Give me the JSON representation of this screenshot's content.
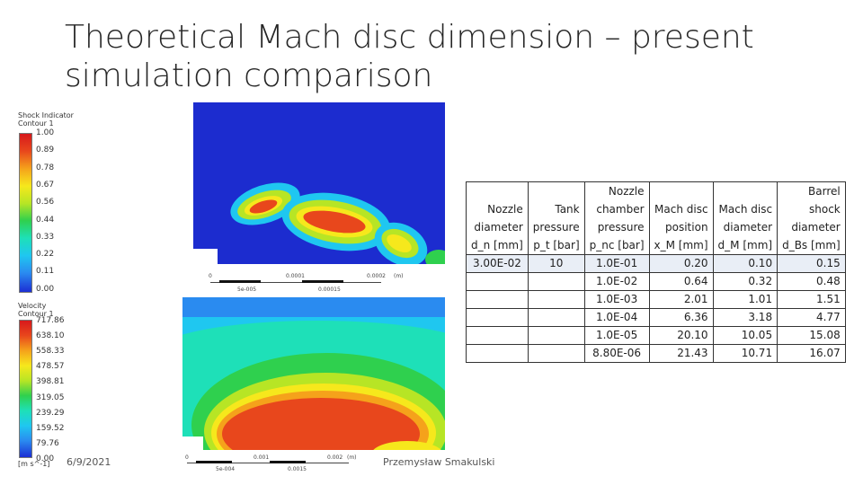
{
  "slide": {
    "title_line1": "Theoretical Mach disc dimension – present",
    "title_line2": "simulation comparison",
    "date": "6/9/2021",
    "author": "Przemysław Smakulski"
  },
  "figure": {
    "shock_legend": {
      "title": "Shock Indicator",
      "subtitle": "Contour 1",
      "ticks": [
        "1.00",
        "0.89",
        "0.78",
        "0.67",
        "0.56",
        "0.44",
        "0.33",
        "0.22",
        "0.11",
        "0.00"
      ]
    },
    "velocity_legend": {
      "title": "Velocity",
      "subtitle": "Contour 1",
      "ticks": [
        "717.86",
        "638.10",
        "558.33",
        "478.57",
        "398.81",
        "319.05",
        "239.29",
        "159.52",
        "79.76",
        "0.00"
      ],
      "units": "[m s^-1]"
    },
    "scale_top": {
      "t0": "0",
      "t1": "0.0001",
      "t2": "0.0002",
      "unit": "(m)",
      "b1": "5e-005",
      "b2": "0.00015"
    },
    "scale_bottom": {
      "t0": "0",
      "t1": "0.001",
      "t2": "0.002",
      "unit": "(m)",
      "b1": "5e-004",
      "b2": "0.0015"
    }
  },
  "table": {
    "headers": [
      [
        "Nozzle",
        "diameter",
        "d_n [mm]"
      ],
      [
        "Tank",
        "pressure",
        "p_t [bar]"
      ],
      [
        "Nozzle",
        "chamber",
        "pressure",
        "p_nc [bar]"
      ],
      [
        "Mach disc",
        "position",
        "x_M [mm]"
      ],
      [
        "Mach disc",
        "diameter",
        "d_M [mm]"
      ],
      [
        "Barrel",
        "shock",
        "diameter",
        "d_Bs [mm]"
      ]
    ],
    "rows": [
      [
        "3.00E-02",
        "10",
        "1.0E-01",
        "0.20",
        "0.10",
        "0.15"
      ],
      [
        "",
        "",
        "1.0E-02",
        "0.64",
        "0.32",
        "0.48"
      ],
      [
        "",
        "",
        "1.0E-03",
        "2.01",
        "1.01",
        "1.51"
      ],
      [
        "",
        "",
        "1.0E-04",
        "6.36",
        "3.18",
        "4.77"
      ],
      [
        "",
        "",
        "1.0E-05",
        "20.10",
        "10.05",
        "15.08"
      ],
      [
        "",
        "",
        "8.80E-06",
        "21.43",
        "10.71",
        "16.07"
      ]
    ]
  }
}
